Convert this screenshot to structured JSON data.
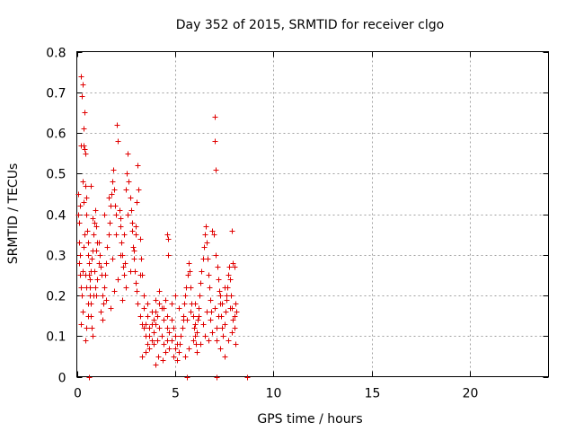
{
  "chart_data": {
    "type": "scatter",
    "title": "Day 352 of 2015, SRMTID for receiver clgo",
    "xlabel": "GPS time / hours",
    "ylabel": "SRMTID / TECUs",
    "xlim": [
      0,
      24
    ],
    "ylim": [
      0,
      0.8
    ],
    "xticks": [
      0,
      5,
      10,
      15,
      20
    ],
    "yticks": [
      0,
      0.1,
      0.2,
      0.3,
      0.4,
      0.5,
      0.6,
      0.7,
      0.8
    ],
    "xtick_labels": [
      "0",
      "5",
      "10",
      "15",
      "20"
    ],
    "ytick_labels": [
      "0",
      "0.1",
      "0.2",
      "0.3",
      "0.4",
      "0.5",
      "0.6",
      "0.7",
      "0.8"
    ],
    "grid": true,
    "marker": "+",
    "color": "#e00000",
    "series": [
      {
        "name": "SRMTID",
        "points": [
          [
            0.05,
            0.45
          ],
          [
            0.08,
            0.4
          ],
          [
            0.1,
            0.33
          ],
          [
            0.12,
            0.38
          ],
          [
            0.15,
            0.42
          ],
          [
            0.18,
            0.25
          ],
          [
            0.2,
            0.57
          ],
          [
            0.22,
            0.74
          ],
          [
            0.25,
            0.69
          ],
          [
            0.28,
            0.72
          ],
          [
            0.3,
            0.72
          ],
          [
            0.33,
            0.61
          ],
          [
            0.35,
            0.57
          ],
          [
            0.38,
            0.56
          ],
          [
            0.4,
            0.65
          ],
          [
            0.42,
            0.55
          ],
          [
            0.45,
            0.47
          ],
          [
            0.48,
            0.44
          ],
          [
            0.5,
            0.4
          ],
          [
            0.52,
            0.36
          ],
          [
            0.55,
            0.33
          ],
          [
            0.58,
            0.3
          ],
          [
            0.6,
            0.28
          ],
          [
            0.62,
            0.25
          ],
          [
            0.65,
            0.22
          ],
          [
            0.68,
            0.2
          ],
          [
            0.7,
            0.18
          ],
          [
            0.72,
            0.15
          ],
          [
            0.75,
            0.12
          ],
          [
            0.78,
            0.1
          ],
          [
            0.1,
            0.28
          ],
          [
            0.15,
            0.3
          ],
          [
            0.2,
            0.22
          ],
          [
            0.25,
            0.2
          ],
          [
            0.3,
            0.26
          ],
          [
            0.35,
            0.32
          ],
          [
            0.4,
            0.35
          ],
          [
            0.45,
            0.25
          ],
          [
            0.5,
            0.22
          ],
          [
            0.55,
            0.18
          ],
          [
            0.6,
            0.0
          ],
          [
            0.65,
            0.24
          ],
          [
            0.7,
            0.26
          ],
          [
            0.75,
            0.29
          ],
          [
            0.8,
            0.31
          ],
          [
            0.85,
            0.35
          ],
          [
            0.9,
            0.38
          ],
          [
            0.95,
            0.41
          ],
          [
            1.0,
            0.37
          ],
          [
            1.05,
            0.33
          ],
          [
            0.45,
            0.09
          ],
          [
            0.5,
            0.12
          ],
          [
            0.55,
            0.15
          ],
          [
            0.3,
            0.48
          ],
          [
            0.35,
            0.43
          ],
          [
            0.9,
            0.26
          ],
          [
            0.95,
            0.22
          ],
          [
            1.0,
            0.2
          ],
          [
            1.05,
            0.24
          ],
          [
            1.1,
            0.28
          ],
          [
            1.15,
            0.3
          ],
          [
            1.2,
            0.27
          ],
          [
            1.25,
            0.25
          ],
          [
            1.3,
            0.2
          ],
          [
            1.35,
            0.18
          ],
          [
            1.4,
            0.22
          ],
          [
            1.45,
            0.25
          ],
          [
            1.5,
            0.28
          ],
          [
            1.55,
            0.32
          ],
          [
            1.6,
            0.35
          ],
          [
            1.65,
            0.38
          ],
          [
            1.7,
            0.42
          ],
          [
            1.75,
            0.45
          ],
          [
            1.8,
            0.48
          ],
          [
            1.85,
            0.51
          ],
          [
            1.9,
            0.46
          ],
          [
            1.95,
            0.42
          ],
          [
            2.0,
            0.4
          ],
          [
            2.05,
            0.62
          ],
          [
            2.1,
            0.58
          ],
          [
            2.15,
            0.41
          ],
          [
            2.2,
            0.37
          ],
          [
            2.25,
            0.33
          ],
          [
            2.3,
            0.3
          ],
          [
            2.35,
            0.27
          ],
          [
            2.4,
            0.25
          ],
          [
            2.45,
            0.28
          ],
          [
            2.5,
            0.46
          ],
          [
            2.55,
            0.5
          ],
          [
            2.6,
            0.55
          ],
          [
            2.65,
            0.48
          ],
          [
            2.7,
            0.44
          ],
          [
            2.75,
            0.41
          ],
          [
            2.8,
            0.36
          ],
          [
            2.85,
            0.32
          ],
          [
            2.9,
            0.29
          ],
          [
            2.95,
            0.26
          ],
          [
            3.0,
            0.23
          ],
          [
            3.05,
            0.21
          ],
          [
            3.1,
            0.18
          ],
          [
            1.2,
            0.16
          ],
          [
            1.3,
            0.14
          ],
          [
            1.5,
            0.19
          ],
          [
            1.7,
            0.17
          ],
          [
            1.9,
            0.21
          ],
          [
            2.1,
            0.24
          ],
          [
            2.3,
            0.19
          ],
          [
            2.5,
            0.22
          ],
          [
            2.7,
            0.26
          ],
          [
            2.9,
            0.31
          ],
          [
            3.0,
            0.37
          ],
          [
            3.05,
            0.43
          ],
          [
            3.1,
            0.52
          ],
          [
            3.15,
            0.46
          ],
          [
            3.2,
            0.34
          ],
          [
            3.25,
            0.29
          ],
          [
            3.3,
            0.25
          ],
          [
            2.0,
            0.35
          ],
          [
            2.2,
            0.3
          ],
          [
            1.8,
            0.29
          ],
          [
            3.2,
            0.15
          ],
          [
            3.3,
            0.13
          ],
          [
            3.4,
            0.12
          ],
          [
            3.5,
            0.1
          ],
          [
            3.6,
            0.08
          ],
          [
            3.7,
            0.07
          ],
          [
            3.8,
            0.09
          ],
          [
            3.9,
            0.11
          ],
          [
            4.0,
            0.13
          ],
          [
            4.1,
            0.15
          ],
          [
            4.2,
            0.12
          ],
          [
            4.3,
            0.1
          ],
          [
            4.4,
            0.08
          ],
          [
            4.5,
            0.06
          ],
          [
            4.6,
            0.09
          ],
          [
            4.7,
            0.11
          ],
          [
            4.8,
            0.14
          ],
          [
            4.9,
            0.12
          ],
          [
            5.0,
            0.1
          ],
          [
            5.1,
            0.08
          ],
          [
            3.3,
            0.05
          ],
          [
            3.5,
            0.06
          ],
          [
            3.7,
            0.12
          ],
          [
            3.9,
            0.14
          ],
          [
            4.1,
            0.09
          ],
          [
            4.3,
            0.17
          ],
          [
            4.5,
            0.19
          ],
          [
            4.7,
            0.07
          ],
          [
            4.9,
            0.05
          ],
          [
            5.1,
            0.04
          ],
          [
            3.4,
            0.17
          ],
          [
            3.6,
            0.15
          ],
          [
            3.8,
            0.13
          ],
          [
            4.0,
            0.16
          ],
          [
            4.2,
            0.18
          ],
          [
            4.4,
            0.14
          ],
          [
            4.6,
            0.12
          ],
          [
            4.8,
            0.09
          ],
          [
            5.0,
            0.07
          ],
          [
            5.2,
            0.06
          ],
          [
            4.0,
            0.03
          ],
          [
            4.15,
            0.05
          ],
          [
            4.35,
            0.04
          ],
          [
            4.6,
            0.35
          ],
          [
            4.62,
            0.34
          ],
          [
            4.65,
            0.3
          ],
          [
            5.25,
            0.08
          ],
          [
            5.3,
            0.1
          ],
          [
            5.35,
            0.12
          ],
          [
            5.4,
            0.15
          ],
          [
            5.45,
            0.18
          ],
          [
            5.5,
            0.2
          ],
          [
            5.55,
            0.22
          ],
          [
            5.6,
            0.0
          ],
          [
            5.65,
            0.25
          ],
          [
            5.7,
            0.28
          ],
          [
            5.75,
            0.26
          ],
          [
            5.8,
            0.22
          ],
          [
            5.85,
            0.18
          ],
          [
            5.9,
            0.15
          ],
          [
            5.95,
            0.12
          ],
          [
            6.0,
            0.1
          ],
          [
            6.05,
            0.08
          ],
          [
            6.1,
            0.11
          ],
          [
            6.15,
            0.14
          ],
          [
            6.2,
            0.17
          ],
          [
            6.25,
            0.2
          ],
          [
            6.3,
            0.23
          ],
          [
            6.35,
            0.26
          ],
          [
            6.4,
            0.29
          ],
          [
            6.45,
            0.32
          ],
          [
            6.5,
            0.35
          ],
          [
            6.55,
            0.37
          ],
          [
            6.6,
            0.33
          ],
          [
            6.65,
            0.29
          ],
          [
            6.7,
            0.25
          ],
          [
            6.75,
            0.22
          ],
          [
            6.8,
            0.19
          ],
          [
            6.85,
            0.16
          ],
          [
            6.9,
            0.36
          ],
          [
            6.95,
            0.35
          ],
          [
            7.0,
            0.64
          ],
          [
            7.02,
            0.58
          ],
          [
            7.05,
            0.51
          ],
          [
            7.08,
            0.3
          ],
          [
            7.1,
            0.0
          ],
          [
            7.15,
            0.27
          ],
          [
            7.2,
            0.24
          ],
          [
            7.25,
            0.21
          ],
          [
            7.3,
            0.18
          ],
          [
            7.35,
            0.15
          ],
          [
            7.4,
            0.12
          ],
          [
            7.45,
            0.1
          ],
          [
            7.5,
            0.13
          ],
          [
            7.55,
            0.16
          ],
          [
            7.6,
            0.19
          ],
          [
            7.65,
            0.22
          ],
          [
            7.7,
            0.25
          ],
          [
            7.75,
            0.27
          ],
          [
            7.8,
            0.24
          ],
          [
            7.85,
            0.2
          ],
          [
            7.9,
            0.17
          ],
          [
            7.95,
            0.14
          ],
          [
            8.0,
            0.12
          ],
          [
            8.05,
            0.08
          ],
          [
            7.9,
            0.36
          ],
          [
            7.95,
            0.28
          ],
          [
            8.0,
            0.27
          ],
          [
            8.05,
            0.18
          ],
          [
            8.1,
            0.16
          ],
          [
            5.5,
            0.05
          ],
          [
            5.7,
            0.07
          ],
          [
            5.9,
            0.09
          ],
          [
            6.1,
            0.06
          ],
          [
            6.3,
            0.08
          ],
          [
            6.5,
            0.1
          ],
          [
            6.7,
            0.09
          ],
          [
            6.9,
            0.11
          ],
          [
            7.1,
            0.09
          ],
          [
            7.3,
            0.07
          ],
          [
            7.5,
            0.05
          ],
          [
            7.7,
            0.09
          ],
          [
            7.9,
            0.11
          ],
          [
            6.0,
            0.18
          ],
          [
            6.2,
            0.15
          ],
          [
            6.4,
            0.13
          ],
          [
            6.6,
            0.16
          ],
          [
            6.8,
            0.14
          ],
          [
            7.0,
            0.17
          ],
          [
            7.2,
            0.15
          ],
          [
            7.4,
            0.18
          ],
          [
            7.6,
            0.2
          ],
          [
            7.8,
            0.17
          ],
          [
            8.0,
            0.15
          ],
          [
            5.6,
            0.14
          ],
          [
            5.8,
            0.16
          ],
          [
            6.0,
            0.13
          ],
          [
            7.1,
            0.12
          ],
          [
            7.3,
            0.2
          ],
          [
            7.5,
            0.22
          ],
          [
            8.65,
            0.0
          ],
          [
            0.2,
            0.13
          ],
          [
            0.3,
            0.16
          ],
          [
            0.7,
            0.47
          ],
          [
            0.8,
            0.39
          ],
          [
            0.85,
            0.2
          ],
          [
            1.0,
            0.31
          ],
          [
            1.1,
            0.33
          ],
          [
            1.4,
            0.4
          ],
          [
            1.6,
            0.44
          ],
          [
            2.2,
            0.39
          ],
          [
            2.4,
            0.35
          ],
          [
            2.6,
            0.4
          ],
          [
            2.8,
            0.38
          ],
          [
            3.0,
            0.35
          ],
          [
            3.2,
            0.25
          ],
          [
            3.4,
            0.2
          ],
          [
            3.6,
            0.18
          ],
          [
            3.8,
            0.16
          ],
          [
            4.0,
            0.19
          ],
          [
            4.2,
            0.21
          ],
          [
            4.4,
            0.17
          ],
          [
            4.6,
            0.15
          ],
          [
            4.8,
            0.18
          ],
          [
            5.0,
            0.2
          ],
          [
            5.2,
            0.17
          ],
          [
            5.4,
            0.14
          ],
          [
            3.5,
            0.13
          ],
          [
            3.7,
            0.1
          ],
          [
            3.9,
            0.08
          ]
        ]
      }
    ]
  }
}
